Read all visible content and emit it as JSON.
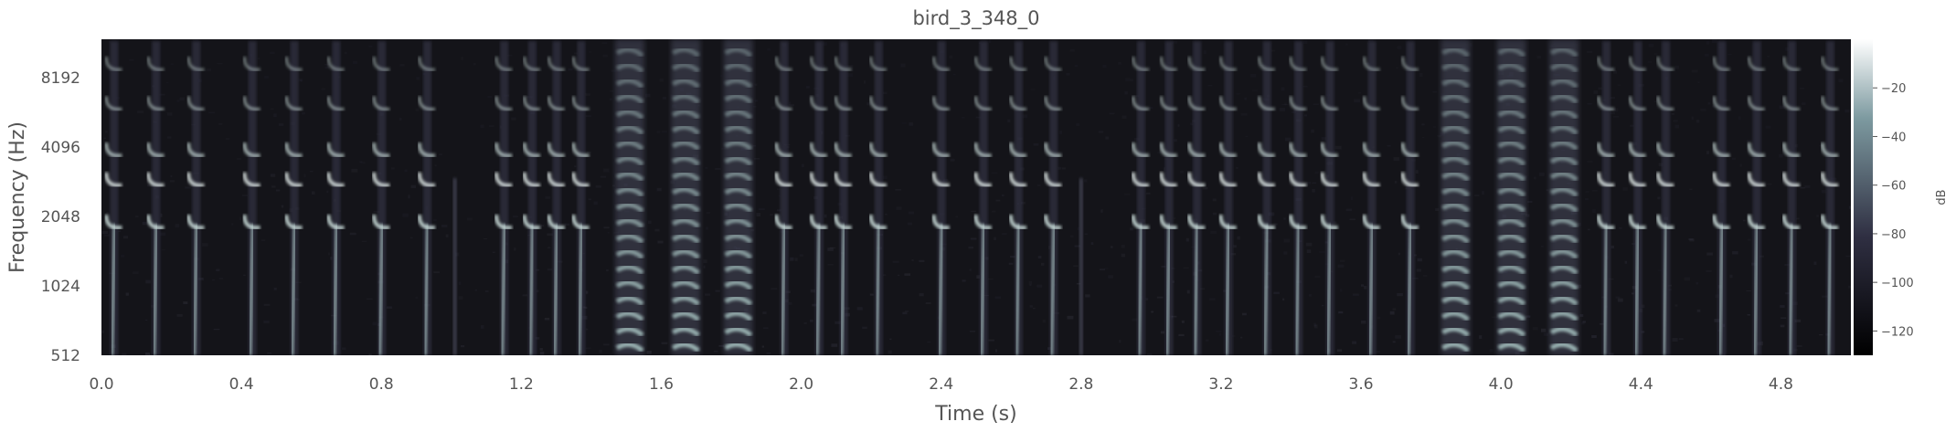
{
  "chart_data": {
    "type": "heatmap",
    "subtype": "spectrogram",
    "title": "bird_3_348_0",
    "xlabel": "Time (s)",
    "ylabel": "Frequency (Hz)",
    "xlim": [
      0,
      5.0
    ],
    "ylim": [
      512,
      12000
    ],
    "yscale": "log2",
    "xticks": [
      0.0,
      0.4,
      0.8,
      1.2,
      1.6,
      2.0,
      2.4,
      2.8,
      3.2,
      3.6,
      4.0,
      4.4,
      4.8
    ],
    "xtick_labels": [
      "0.0",
      "0.4",
      "0.8",
      "1.2",
      "1.6",
      "2.0",
      "2.4",
      "2.8",
      "3.2",
      "3.6",
      "4.0",
      "4.4",
      "4.8"
    ],
    "yticks": [
      512,
      1024,
      2048,
      4096,
      8192
    ],
    "ytick_labels": [
      "512",
      "1024",
      "2048",
      "4096",
      "8192"
    ],
    "colorbar": {
      "label": "dB",
      "range": [
        -130,
        0
      ],
      "ticks": [
        -120,
        -100,
        -80,
        -60,
        -40,
        -20
      ],
      "tick_labels": [
        "−120",
        "−100",
        "−80",
        "−60",
        "−40",
        "−20"
      ],
      "colormap": "bone"
    },
    "events": [
      {
        "t": 0.035,
        "kind": "call"
      },
      {
        "t": 0.155,
        "kind": "call"
      },
      {
        "t": 0.27,
        "kind": "call"
      },
      {
        "t": 0.43,
        "kind": "call"
      },
      {
        "t": 0.55,
        "kind": "call"
      },
      {
        "t": 0.67,
        "kind": "call"
      },
      {
        "t": 0.8,
        "kind": "call"
      },
      {
        "t": 0.93,
        "kind": "call"
      },
      {
        "t": 1.01,
        "kind": "faint"
      },
      {
        "t": 1.15,
        "kind": "call"
      },
      {
        "t": 1.23,
        "kind": "call"
      },
      {
        "t": 1.3,
        "kind": "call"
      },
      {
        "t": 1.37,
        "kind": "call"
      },
      {
        "t": 1.51,
        "kind": "broadband"
      },
      {
        "t": 1.67,
        "kind": "broadband"
      },
      {
        "t": 1.82,
        "kind": "broadband"
      },
      {
        "t": 1.95,
        "kind": "call"
      },
      {
        "t": 2.05,
        "kind": "call"
      },
      {
        "t": 2.12,
        "kind": "call"
      },
      {
        "t": 2.22,
        "kind": "call"
      },
      {
        "t": 2.4,
        "kind": "call"
      },
      {
        "t": 2.52,
        "kind": "call"
      },
      {
        "t": 2.62,
        "kind": "call"
      },
      {
        "t": 2.72,
        "kind": "call"
      },
      {
        "t": 2.8,
        "kind": "faint"
      },
      {
        "t": 2.97,
        "kind": "call"
      },
      {
        "t": 3.05,
        "kind": "call"
      },
      {
        "t": 3.13,
        "kind": "call"
      },
      {
        "t": 3.22,
        "kind": "call"
      },
      {
        "t": 3.33,
        "kind": "call"
      },
      {
        "t": 3.42,
        "kind": "call"
      },
      {
        "t": 3.51,
        "kind": "call"
      },
      {
        "t": 3.63,
        "kind": "call"
      },
      {
        "t": 3.74,
        "kind": "call"
      },
      {
        "t": 3.87,
        "kind": "broadband"
      },
      {
        "t": 4.03,
        "kind": "broadband"
      },
      {
        "t": 4.18,
        "kind": "broadband"
      },
      {
        "t": 4.3,
        "kind": "call"
      },
      {
        "t": 4.39,
        "kind": "call"
      },
      {
        "t": 4.47,
        "kind": "call"
      },
      {
        "t": 4.63,
        "kind": "call"
      },
      {
        "t": 4.73,
        "kind": "call"
      },
      {
        "t": 4.83,
        "kind": "call"
      },
      {
        "t": 4.94,
        "kind": "call"
      }
    ]
  }
}
